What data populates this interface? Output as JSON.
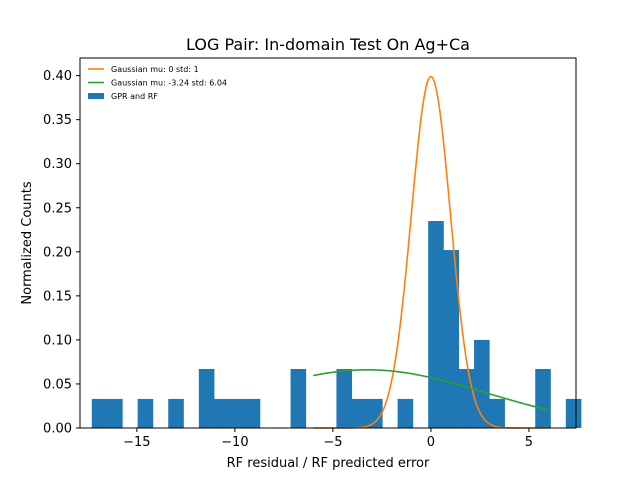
{
  "chart_data": {
    "type": "bar",
    "title": "LOG Pair: In-domain Test On Ag+Ca",
    "xlabel": "RF residual / RF predicted error",
    "ylabel": "Normalized Counts",
    "xlim": [
      -17.9,
      7.4
    ],
    "ylim": [
      0,
      0.42
    ],
    "xticks": [
      -15,
      -10,
      -5,
      0,
      5
    ],
    "xtick_labels": [
      "−15",
      "−10",
      "−5",
      "0",
      "5"
    ],
    "yticks": [
      0.0,
      0.05,
      0.1,
      0.15,
      0.2,
      0.25,
      0.3,
      0.35,
      0.4
    ],
    "ytick_labels": [
      "0.00",
      "0.05",
      "0.10",
      "0.15",
      "0.20",
      "0.25",
      "0.30",
      "0.35",
      "0.40"
    ],
    "grid": false,
    "legend_position": "top-left",
    "histogram": {
      "name": "GPR and RF",
      "color": "#1f77b4",
      "bin_start": -17.3,
      "bin_width": 0.78,
      "counts": [
        0.033,
        0.033,
        0,
        0.033,
        0,
        0.033,
        0,
        0.067,
        0.033,
        0.033,
        0.033,
        0,
        0,
        0.067,
        0,
        0,
        0.067,
        0.033,
        0.033,
        0,
        0.033,
        0,
        0.235,
        0.202,
        0.067,
        0.1,
        0.033,
        0,
        0,
        0.067,
        0,
        0.033
      ]
    },
    "series": [
      {
        "name": "Gaussian mu: 0 std: 1",
        "type": "line",
        "color": "#ff7f0e",
        "mu": 0,
        "std": 1,
        "x_range": [
          -6,
          6
        ]
      },
      {
        "name": "Gaussian mu: -3.24 std: 6.04",
        "type": "line",
        "color": "#2ca02c",
        "mu": -3.24,
        "std": 6.04,
        "x_range": [
          -6,
          6
        ]
      }
    ]
  }
}
